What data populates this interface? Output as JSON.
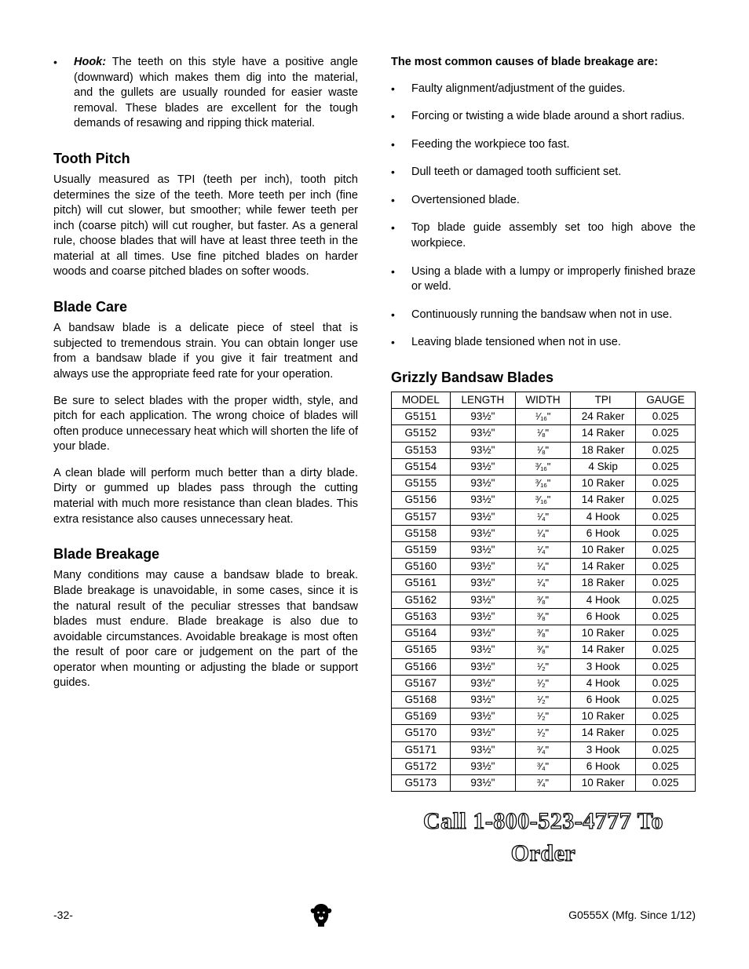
{
  "leftCol": {
    "hookBullet": {
      "lead": "Hook:",
      "text": " The teeth on this style have a positive angle (downward) which makes them dig into the material, and the gullets are usually rounded for easier waste removal. These blades are excellent for the tough demands of resawing and ripping thick material."
    },
    "toothPitch": {
      "heading": "Tooth Pitch",
      "body": "Usually measured as TPI (teeth per inch), tooth pitch determines the size of the teeth. More teeth per inch (fine pitch) will cut slower, but smoother; while fewer teeth per inch (coarse pitch) will cut rougher, but faster. As a general rule, choose blades that will have at least three teeth in the material at all times. Use fine pitched blades on harder woods and coarse pitched blades on softer woods."
    },
    "bladeCare": {
      "heading": "Blade Care",
      "p1": "A bandsaw blade is a delicate piece of steel that is subjected to tremendous strain. You can obtain longer use from a bandsaw blade if you give it fair treatment and always use the appropriate feed rate for your operation.",
      "p2": "Be sure to select blades with the proper width, style, and pitch for each application. The wrong choice of blades will often produce unnecessary heat which will shorten the life of your blade.",
      "p3": "A clean blade will perform much better than a dirty blade. Dirty or gummed up blades pass through the cutting material with much more resistance than clean blades. This extra resistance also causes unnecessary heat."
    },
    "bladeBreakage": {
      "heading": "Blade Breakage",
      "body": "Many conditions may cause a bandsaw blade to break. Blade breakage is unavoidable, in some cases, since it is the natural result of the peculiar stresses that bandsaw blades must endure. Blade breakage is also due to avoidable circumstances. Avoidable breakage is most often the result of poor care or judgement on the part of the operator when mounting or adjusting the blade or support guides."
    }
  },
  "rightCol": {
    "causesLead": "The most common causes of blade breakage are:",
    "causes": [
      "Faulty alignment/adjustment of the guides.",
      "Forcing or twisting a wide blade around a short radius.",
      "Feeding the workpiece too fast.",
      "Dull teeth or damaged tooth sufficient set.",
      "Overtensioned blade.",
      "Top blade guide assembly set too high above the workpiece.",
      "Using a blade with a lumpy or improperly finished braze or weld.",
      "Continuously running the bandsaw when not in use.",
      "Leaving blade tensioned when not in use."
    ],
    "bladesHeading": "Grizzly Bandsaw Blades",
    "tableHeaders": [
      "MODEL",
      "LENGTH",
      "WIDTH",
      "TPI",
      "GAUGE"
    ],
    "rows": [
      {
        "model": "G5151",
        "length": "93½\"",
        "width": "1/16",
        "tpi": "24 Raker",
        "gauge": "0.025"
      },
      {
        "model": "G5152",
        "length": "93½\"",
        "width": "1/8",
        "tpi": "14 Raker",
        "gauge": "0.025"
      },
      {
        "model": "G5153",
        "length": "93½\"",
        "width": "1/8",
        "tpi": "18 Raker",
        "gauge": "0.025"
      },
      {
        "model": "G5154",
        "length": "93½\"",
        "width": "3/16",
        "tpi": "4 Skip",
        "gauge": "0.025"
      },
      {
        "model": "G5155",
        "length": "93½\"",
        "width": "3/16",
        "tpi": "10 Raker",
        "gauge": "0.025"
      },
      {
        "model": "G5156",
        "length": "93½\"",
        "width": "3/16",
        "tpi": "14 Raker",
        "gauge": "0.025"
      },
      {
        "model": "G5157",
        "length": "93½\"",
        "width": "1/4",
        "tpi": "4 Hook",
        "gauge": "0.025"
      },
      {
        "model": "G5158",
        "length": "93½\"",
        "width": "1/4",
        "tpi": "6 Hook",
        "gauge": "0.025"
      },
      {
        "model": "G5159",
        "length": "93½\"",
        "width": "1/4",
        "tpi": "10 Raker",
        "gauge": "0.025"
      },
      {
        "model": "G5160",
        "length": "93½\"",
        "width": "1/4",
        "tpi": "14 Raker",
        "gauge": "0.025"
      },
      {
        "model": "G5161",
        "length": "93½\"",
        "width": "1/4",
        "tpi": "18 Raker",
        "gauge": "0.025"
      },
      {
        "model": "G5162",
        "length": "93½\"",
        "width": "3/8",
        "tpi": "4 Hook",
        "gauge": "0.025"
      },
      {
        "model": "G5163",
        "length": "93½\"",
        "width": "3/8",
        "tpi": "6 Hook",
        "gauge": "0.025"
      },
      {
        "model": "G5164",
        "length": "93½\"",
        "width": "3/8",
        "tpi": "10 Raker",
        "gauge": "0.025"
      },
      {
        "model": "G5165",
        "length": "93½\"",
        "width": "3/8",
        "tpi": "14 Raker",
        "gauge": "0.025"
      },
      {
        "model": "G5166",
        "length": "93½\"",
        "width": "1/2",
        "tpi": "3 Hook",
        "gauge": "0.025"
      },
      {
        "model": "G5167",
        "length": "93½\"",
        "width": "1/2",
        "tpi": "4 Hook",
        "gauge": "0.025"
      },
      {
        "model": "G5168",
        "length": "93½\"",
        "width": "1/2",
        "tpi": "6 Hook",
        "gauge": "0.025"
      },
      {
        "model": "G5169",
        "length": "93½\"",
        "width": "1/2",
        "tpi": "10 Raker",
        "gauge": "0.025"
      },
      {
        "model": "G5170",
        "length": "93½\"",
        "width": "1/2",
        "tpi": "14 Raker",
        "gauge": "0.025"
      },
      {
        "model": "G5171",
        "length": "93½\"",
        "width": "3/4",
        "tpi": "3 Hook",
        "gauge": "0.025"
      },
      {
        "model": "G5172",
        "length": "93½\"",
        "width": "3/4",
        "tpi": "6 Hook",
        "gauge": "0.025"
      },
      {
        "model": "G5173",
        "length": "93½\"",
        "width": "3/4",
        "tpi": "10 Raker",
        "gauge": "0.025"
      }
    ],
    "callToOrder": "Call 1-800-523-4777 To Order"
  },
  "footer": {
    "pageNum": "-32-",
    "docId": "G0555X (Mfg. Since 1/12)"
  },
  "style": {
    "text_color": "#000000",
    "background_color": "#ffffff",
    "body_fontsize_pt": 11,
    "heading_fontsize_pt": 14,
    "call_fontsize_pt": 22,
    "table_border_color": "#000000",
    "font_family": "Arial, Helvetica, sans-serif"
  }
}
